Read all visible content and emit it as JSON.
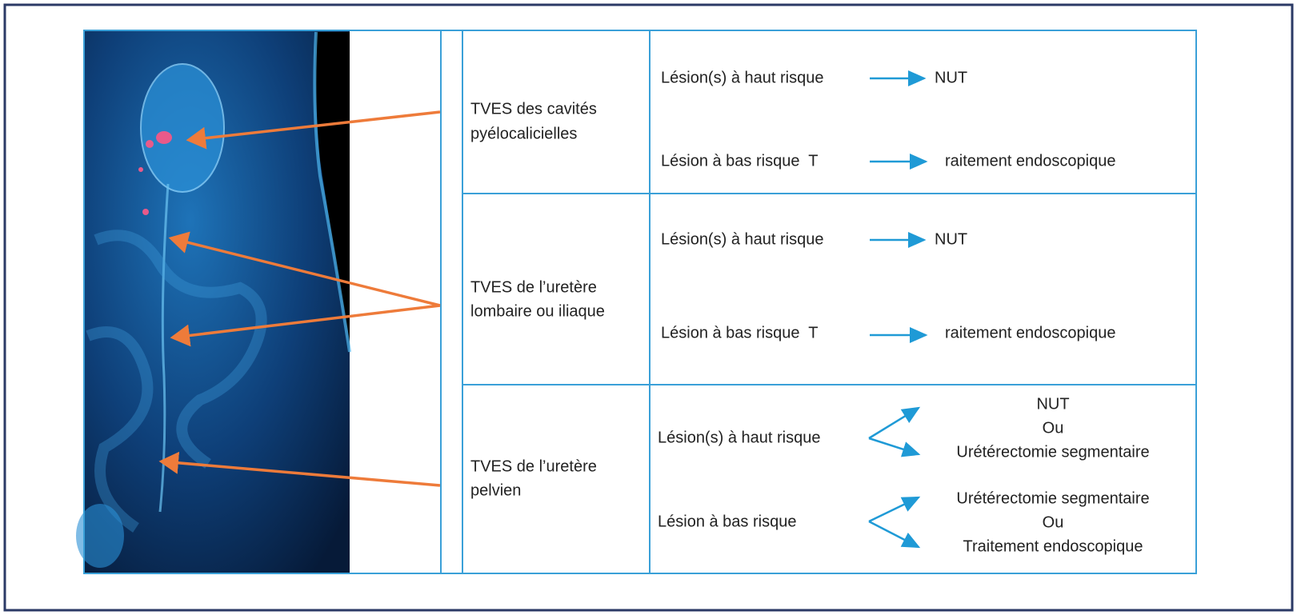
{
  "rows": [
    {
      "location": [
        "TVES des cavités",
        "pyélocalicielles"
      ],
      "high_risk": {
        "label": "Lésion(s) à haut risque",
        "outcomes": [
          "NUT"
        ]
      },
      "low_risk": {
        "label": "Lésion à bas risque  T",
        "outcomes": [
          "raitement endoscopique"
        ]
      }
    },
    {
      "location": [
        "TVES de l’uretère",
        "lombaire ou iliaque"
      ],
      "high_risk": {
        "label": "Lésion(s) à haut risque",
        "outcomes": [
          "NUT"
        ]
      },
      "low_risk": {
        "label": "Lésion à bas risque  T",
        "outcomes": [
          "raitement endoscopique"
        ]
      }
    },
    {
      "location": [
        "TVES de l’uretère",
        "pelvien"
      ],
      "high_risk": {
        "label": "Lésion(s) à haut risque",
        "outcomes": [
          "NUT",
          "Ou",
          "Urétérectomie segmentaire"
        ]
      },
      "low_risk": {
        "label": "Lésion à bas risque",
        "outcomes": [
          "Urétérectomie segmentaire",
          "Ou",
          "Traitement endoscopique"
        ]
      }
    }
  ]
}
